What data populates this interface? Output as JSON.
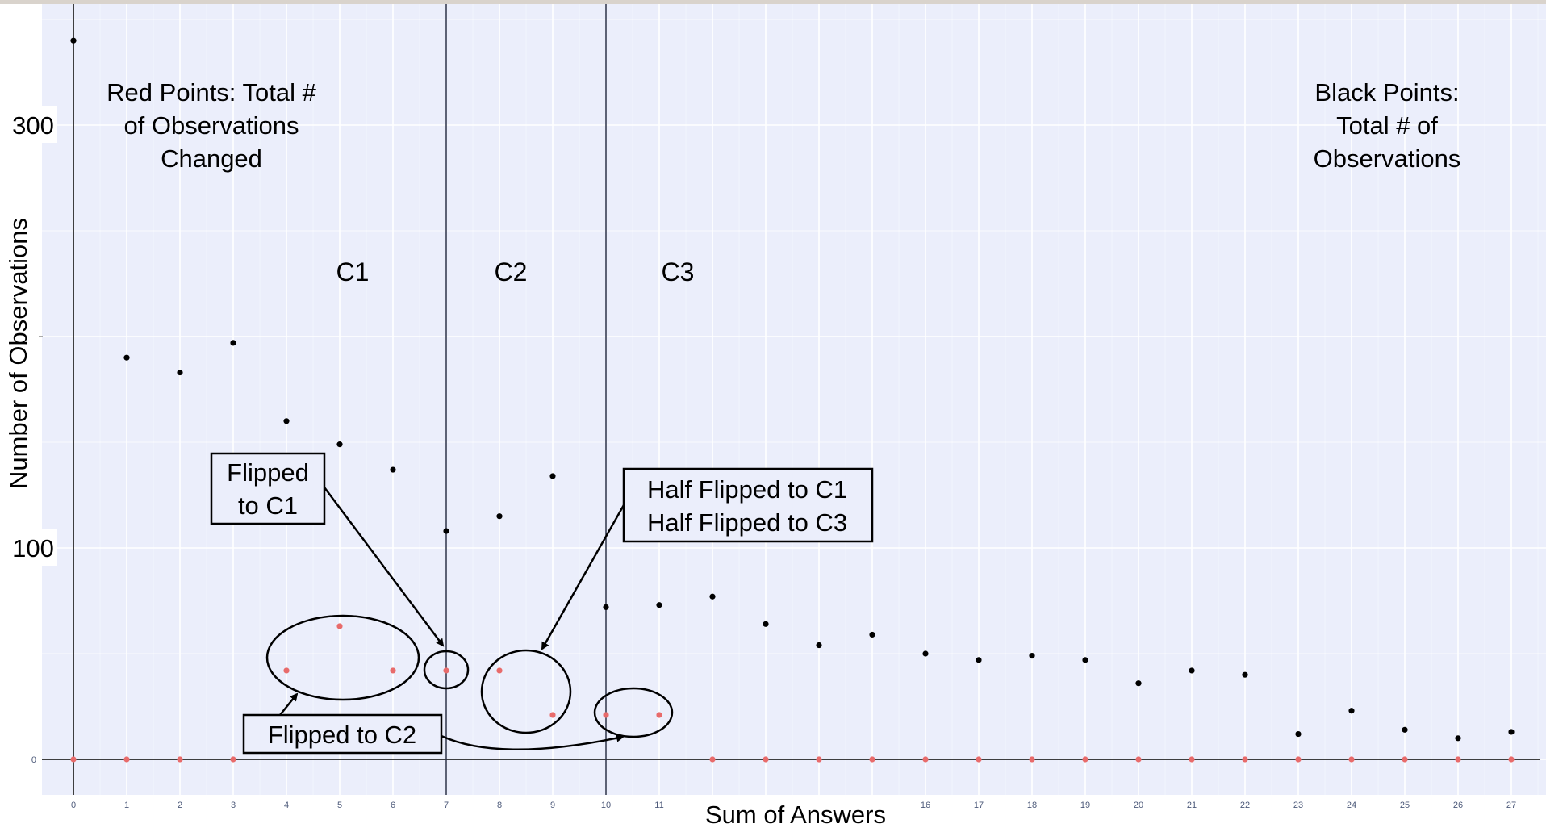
{
  "chart_data": {
    "type": "scatter",
    "xlabel": "Sum of Answers",
    "ylabel": "Number of Observations",
    "xlim": [
      -0.6,
      27.6
    ],
    "ylim": [
      -17,
      356
    ],
    "x_ticks": [
      "0",
      "1",
      "2",
      "3",
      "4",
      "5",
      "6",
      "7",
      "8",
      "9",
      "10",
      "11",
      "16",
      "17",
      "18",
      "19",
      "20",
      "21",
      "22",
      "23",
      "24",
      "25",
      "26",
      "27"
    ],
    "y_ticks_large": [
      "300",
      "100"
    ],
    "y_ticks_small": [
      "0"
    ],
    "vertical_lines": [
      0,
      7,
      10
    ],
    "horizontal_line": 0,
    "series": [
      {
        "color": "#000000",
        "points": [
          [
            0,
            340
          ],
          [
            1,
            190
          ],
          [
            2,
            183
          ],
          [
            3,
            197
          ],
          [
            4,
            160
          ],
          [
            5,
            149
          ],
          [
            6,
            137
          ],
          [
            7,
            108
          ],
          [
            8,
            115
          ],
          [
            9,
            134
          ],
          [
            10,
            72
          ],
          [
            11,
            73
          ],
          [
            12,
            77
          ],
          [
            13,
            64
          ],
          [
            14,
            54
          ],
          [
            15,
            59
          ],
          [
            16,
            50
          ],
          [
            17,
            47
          ],
          [
            18,
            49
          ],
          [
            19,
            47
          ],
          [
            20,
            36
          ],
          [
            21,
            42
          ],
          [
            22,
            40
          ],
          [
            23,
            12
          ],
          [
            24,
            23
          ],
          [
            25,
            14
          ],
          [
            26,
            10
          ],
          [
            27,
            13
          ]
        ]
      },
      {
        "color": "#e86b6b",
        "points": [
          [
            0,
            0
          ],
          [
            1,
            0
          ],
          [
            2,
            0
          ],
          [
            3,
            0
          ],
          [
            4,
            42
          ],
          [
            5,
            63
          ],
          [
            6,
            42
          ],
          [
            7,
            42
          ],
          [
            8,
            42
          ],
          [
            9,
            21
          ],
          [
            10,
            21
          ],
          [
            11,
            21
          ],
          [
            12,
            0
          ],
          [
            13,
            0
          ],
          [
            14,
            0
          ],
          [
            15,
            0
          ],
          [
            16,
            0
          ],
          [
            17,
            0
          ],
          [
            18,
            0
          ],
          [
            19,
            0
          ],
          [
            20,
            0
          ],
          [
            21,
            0
          ],
          [
            22,
            0
          ],
          [
            23,
            0
          ],
          [
            24,
            0
          ],
          [
            25,
            0
          ],
          [
            26,
            0
          ],
          [
            27,
            0
          ]
        ]
      }
    ],
    "annotations": {
      "red_points": [
        "Red Points: Total #",
        "of Observations",
        "Changed"
      ],
      "black_points": [
        "Black Points:",
        "Total # of",
        "Observations"
      ],
      "c1": "C1",
      "c2": "C2",
      "c3": "C3",
      "flipped_c1": [
        "Flipped",
        "to C1"
      ],
      "half_flipped": [
        "Half Flipped to C1",
        "Half Flipped to C3"
      ],
      "flipped_c2": "Flipped to C2"
    }
  }
}
